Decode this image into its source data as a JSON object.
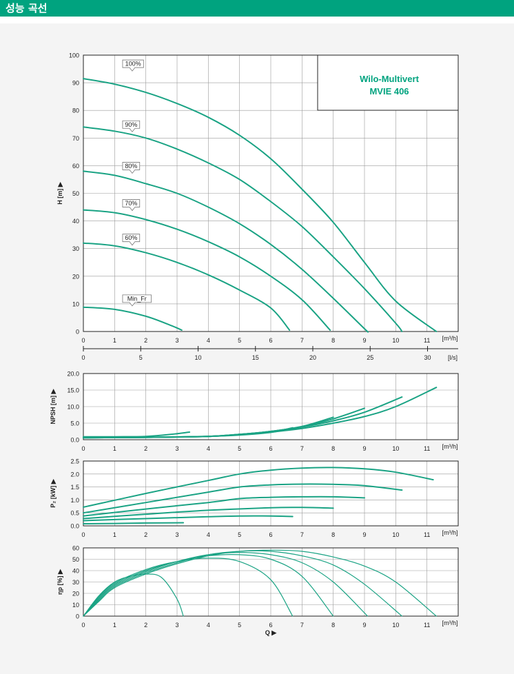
{
  "header": {
    "title": "성능 곡선"
  },
  "colors": {
    "accent": "#00a37f",
    "curve": "#1aa384",
    "grid": "#9a9a9a",
    "axis": "#222222",
    "background": "#f4f4f4"
  },
  "chart_data": [
    {
      "id": "head",
      "type": "line",
      "title": "Wilo-Multivert",
      "subtitle": "MVIE 406",
      "xlabel": "[m³/h]",
      "ylabel": "H [m] ▶",
      "xlim": [
        0,
        12
      ],
      "ylim": [
        0,
        100
      ],
      "xticks": [
        0,
        1,
        2,
        3,
        4,
        5,
        6,
        7,
        8,
        9,
        10,
        11
      ],
      "yticks": [
        0,
        10,
        20,
        30,
        40,
        50,
        60,
        70,
        80,
        90,
        100
      ],
      "x2_label": "[l/s]",
      "x2_ticks": [
        0,
        5,
        10,
        15,
        20,
        25,
        30
      ],
      "grid": true,
      "series": [
        {
          "name": "100%",
          "label_x": 1.3,
          "label_y": 95.5,
          "points": [
            [
              0,
              91.5
            ],
            [
              1,
              89.5
            ],
            [
              2,
              86.5
            ],
            [
              3,
              82.5
            ],
            [
              4,
              77.5
            ],
            [
              5,
              71
            ],
            [
              6,
              62.5
            ],
            [
              7,
              51.5
            ],
            [
              8,
              39.5
            ],
            [
              9,
              25
            ],
            [
              10,
              11
            ],
            [
              11.3,
              0
            ]
          ]
        },
        {
          "name": "90%",
          "label_x": 1.3,
          "label_y": 73.5,
          "points": [
            [
              0,
              74
            ],
            [
              1,
              72.5
            ],
            [
              2,
              70
            ],
            [
              3,
              66
            ],
            [
              4,
              61
            ],
            [
              5,
              55
            ],
            [
              6,
              47
            ],
            [
              7,
              38
            ],
            [
              8,
              27
            ],
            [
              9,
              15.5
            ],
            [
              10,
              3
            ],
            [
              10.2,
              0
            ]
          ]
        },
        {
          "name": "80%",
          "label_x": 1.3,
          "label_y": 58.5,
          "points": [
            [
              0,
              58
            ],
            [
              1,
              56.5
            ],
            [
              2,
              53.5
            ],
            [
              3,
              50
            ],
            [
              4,
              45
            ],
            [
              5,
              39
            ],
            [
              6,
              31.5
            ],
            [
              7,
              22.5
            ],
            [
              8,
              12
            ],
            [
              9,
              1
            ],
            [
              9.1,
              0
            ]
          ]
        },
        {
          "name": "70%",
          "label_x": 1.3,
          "label_y": 45,
          "points": [
            [
              0,
              44
            ],
            [
              1,
              43
            ],
            [
              2,
              40.5
            ],
            [
              3,
              37
            ],
            [
              4,
              32.5
            ],
            [
              5,
              27
            ],
            [
              6,
              20
            ],
            [
              7,
              11.5
            ],
            [
              7.9,
              0.5
            ]
          ]
        },
        {
          "name": "60%",
          "label_x": 1.3,
          "label_y": 32.5,
          "points": [
            [
              0,
              32
            ],
            [
              1,
              31
            ],
            [
              2,
              28.5
            ],
            [
              3,
              25
            ],
            [
              4,
              20.5
            ],
            [
              5,
              15
            ],
            [
              6,
              8.5
            ],
            [
              6.6,
              0.5
            ]
          ]
        },
        {
          "name": "Min_Fr",
          "label_x": 1.3,
          "label_y": 10.5,
          "points": [
            [
              0,
              8.8
            ],
            [
              1,
              8
            ],
            [
              2,
              5.5
            ],
            [
              2.8,
              2.2
            ],
            [
              3.15,
              0.5
            ]
          ]
        }
      ]
    },
    {
      "id": "npsh",
      "type": "line",
      "xlabel": "[m³/h]",
      "ylabel": "NPSH [m] ▶",
      "xlim": [
        0,
        12
      ],
      "ylim": [
        0,
        20
      ],
      "xticks": [
        0,
        1,
        2,
        3,
        4,
        5,
        6,
        7,
        8,
        9,
        10,
        11
      ],
      "yticks": [
        0.0,
        5.0,
        10.0,
        15.0,
        20.0
      ],
      "grid": true,
      "series": [
        {
          "points": [
            [
              0,
              0.9
            ],
            [
              1,
              0.9
            ],
            [
              2,
              1
            ],
            [
              2.8,
              1.6
            ],
            [
              3.4,
              2.3
            ]
          ]
        },
        {
          "points": [
            [
              0,
              0.6
            ],
            [
              2,
              0.7
            ],
            [
              4,
              1
            ],
            [
              5,
              1.4
            ],
            [
              6,
              2.2
            ],
            [
              6.7,
              3.6
            ]
          ]
        },
        {
          "points": [
            [
              0,
              0.6
            ],
            [
              2,
              0.7
            ],
            [
              4,
              1
            ],
            [
              5,
              1.6
            ],
            [
              6,
              2.5
            ],
            [
              7,
              4
            ],
            [
              8,
              6.8
            ]
          ]
        },
        {
          "points": [
            [
              0,
              0.6
            ],
            [
              2,
              0.7
            ],
            [
              4,
              1
            ],
            [
              5,
              1.6
            ],
            [
              6,
              2.5
            ],
            [
              7,
              4
            ],
            [
              8,
              6.3
            ],
            [
              9,
              9.5
            ]
          ]
        },
        {
          "points": [
            [
              0,
              0.6
            ],
            [
              2,
              0.7
            ],
            [
              4,
              1
            ],
            [
              5,
              1.6
            ],
            [
              6,
              2.5
            ],
            [
              7,
              3.8
            ],
            [
              8,
              5.7
            ],
            [
              9,
              8.3
            ],
            [
              10.2,
              12.9
            ]
          ]
        },
        {
          "points": [
            [
              0,
              0.6
            ],
            [
              2,
              0.7
            ],
            [
              4,
              1
            ],
            [
              5,
              1.5
            ],
            [
              6,
              2.3
            ],
            [
              7,
              3.4
            ],
            [
              8,
              5
            ],
            [
              9,
              7
            ],
            [
              10,
              10
            ],
            [
              11.3,
              15.8
            ]
          ]
        }
      ]
    },
    {
      "id": "power",
      "type": "line",
      "xlabel": "[m³/h]",
      "ylabel": "P₂ [kW] ▶",
      "xlim": [
        0,
        12
      ],
      "ylim": [
        0,
        2.5
      ],
      "xticks": [
        0,
        1,
        2,
        3,
        4,
        5,
        6,
        7,
        8,
        9,
        10,
        11
      ],
      "yticks": [
        0.0,
        0.5,
        1.0,
        1.5,
        2.0,
        2.5
      ],
      "grid": true,
      "series": [
        {
          "points": [
            [
              0,
              0.08
            ],
            [
              1,
              0.09
            ],
            [
              2,
              0.11
            ],
            [
              3.2,
              0.12
            ]
          ]
        },
        {
          "points": [
            [
              0,
              0.2
            ],
            [
              2,
              0.28
            ],
            [
              4,
              0.35
            ],
            [
              5,
              0.38
            ],
            [
              6,
              0.38
            ],
            [
              6.7,
              0.36
            ]
          ]
        },
        {
          "points": [
            [
              0,
              0.28
            ],
            [
              2,
              0.45
            ],
            [
              4,
              0.6
            ],
            [
              6,
              0.7
            ],
            [
              7,
              0.71
            ],
            [
              8,
              0.68
            ]
          ]
        },
        {
          "points": [
            [
              0,
              0.38
            ],
            [
              2,
              0.65
            ],
            [
              4,
              0.9
            ],
            [
              5,
              1.05
            ],
            [
              6,
              1.1
            ],
            [
              7,
              1.12
            ],
            [
              8,
              1.12
            ],
            [
              9,
              1.08
            ]
          ]
        },
        {
          "points": [
            [
              0,
              0.5
            ],
            [
              2,
              0.9
            ],
            [
              4,
              1.3
            ],
            [
              5,
              1.5
            ],
            [
              6,
              1.58
            ],
            [
              7,
              1.61
            ],
            [
              8,
              1.6
            ],
            [
              9,
              1.55
            ],
            [
              10.2,
              1.38
            ]
          ]
        },
        {
          "points": [
            [
              0,
              0.72
            ],
            [
              2,
              1.25
            ],
            [
              4,
              1.75
            ],
            [
              5,
              2.0
            ],
            [
              6,
              2.15
            ],
            [
              7,
              2.23
            ],
            [
              8,
              2.25
            ],
            [
              9,
              2.2
            ],
            [
              10,
              2.07
            ],
            [
              11.2,
              1.78
            ]
          ]
        }
      ]
    },
    {
      "id": "efficiency",
      "type": "line",
      "xlabel": "[m³/h]",
      "x_name": "Q ▶",
      "ylabel": "ηp [%] ▶",
      "xlim": [
        0,
        12
      ],
      "ylim": [
        0,
        60
      ],
      "xticks": [
        0,
        1,
        2,
        3,
        4,
        5,
        6,
        7,
        8,
        9,
        10,
        11
      ],
      "yticks": [
        0,
        10,
        20,
        30,
        40,
        50,
        60
      ],
      "grid": true,
      "series": [
        {
          "points": [
            [
              0,
              0
            ],
            [
              0.5,
              18
            ],
            [
              1,
              30
            ],
            [
              1.5,
              35
            ],
            [
              2,
              37
            ],
            [
              2.5,
              34
            ],
            [
              3,
              15
            ],
            [
              3.2,
              0
            ]
          ]
        },
        {
          "points": [
            [
              0,
              0
            ],
            [
              0.5,
              17
            ],
            [
              1,
              29
            ],
            [
              2,
              41
            ],
            [
              3,
              48
            ],
            [
              4,
              51
            ],
            [
              5,
              48
            ],
            [
              6,
              32
            ],
            [
              6.7,
              0
            ]
          ]
        },
        {
          "points": [
            [
              0,
              0
            ],
            [
              0.5,
              16
            ],
            [
              1,
              28
            ],
            [
              2,
              40
            ],
            [
              3,
              48
            ],
            [
              4,
              53
            ],
            [
              5,
              54
            ],
            [
              6,
              50
            ],
            [
              7,
              35
            ],
            [
              8,
              0
            ]
          ]
        },
        {
          "points": [
            [
              0,
              0
            ],
            [
              0.5,
              15
            ],
            [
              1,
              27
            ],
            [
              2,
              39
            ],
            [
              3,
              48
            ],
            [
              4,
              54
            ],
            [
              5,
              56
            ],
            [
              6,
              54
            ],
            [
              7,
              47
            ],
            [
              8,
              30
            ],
            [
              9.1,
              0
            ]
          ]
        },
        {
          "points": [
            [
              0,
              0
            ],
            [
              0.5,
              14
            ],
            [
              1,
              26
            ],
            [
              2,
              38
            ],
            [
              3,
              47
            ],
            [
              4,
              54
            ],
            [
              5,
              57
            ],
            [
              6,
              57
            ],
            [
              7,
              53
            ],
            [
              8,
              45
            ],
            [
              9,
              28
            ],
            [
              10.2,
              0
            ]
          ]
        },
        {
          "points": [
            [
              0,
              0
            ],
            [
              0.5,
              13
            ],
            [
              1,
              25
            ],
            [
              2,
              37
            ],
            [
              3,
              46
            ],
            [
              4,
              53
            ],
            [
              5,
              57
            ],
            [
              6,
              58
            ],
            [
              7,
              57
            ],
            [
              8,
              52
            ],
            [
              9,
              44
            ],
            [
              10,
              30
            ],
            [
              11.3,
              0
            ]
          ]
        }
      ]
    }
  ]
}
